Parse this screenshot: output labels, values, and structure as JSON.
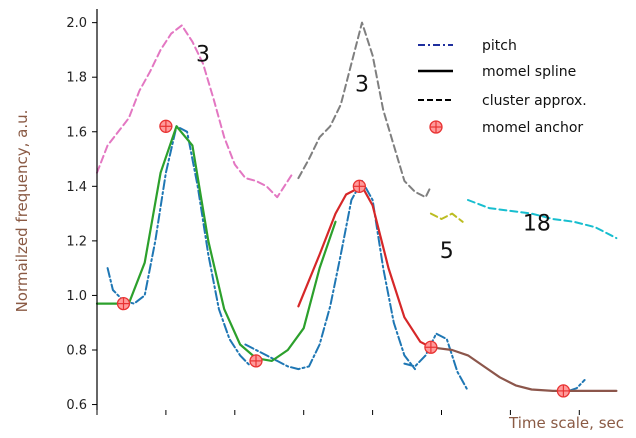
{
  "chart_data": {
    "type": "line",
    "title": "",
    "xlabel": "Time scale, sec",
    "ylabel": "Normailzed frequency, a.u.",
    "xlim": [
      0,
      100
    ],
    "ylim": [
      0.58,
      2.05
    ],
    "yticks": [
      0.6,
      0.8,
      1.0,
      1.2,
      1.4,
      1.6,
      1.8,
      2.0
    ],
    "ytick_labels": [
      "0.6",
      "0.8",
      "1.0",
      "1.2",
      "1.4",
      "1.6",
      "1.8",
      "2.0"
    ],
    "xticks": [
      0,
      13,
      26,
      39,
      52,
      65,
      78,
      91
    ],
    "grid": false,
    "legend_position": "top-right",
    "legend": [
      {
        "label": "pitch",
        "style": "dashdot",
        "color": "#1f2f9e"
      },
      {
        "label": "momel spline",
        "style": "solid",
        "color": "#000000"
      },
      {
        "label": "cluster approx.",
        "style": "dashed",
        "color": "#000000"
      },
      {
        "label": "momel anchor",
        "style": "marker",
        "color": "#ff4d4d"
      }
    ],
    "series": [
      {
        "name": "pitch",
        "style": "dashdot",
        "color": "#1f77b4",
        "segments": [
          {
            "x": [
              2,
              3,
              5,
              7,
              9,
              11,
              13,
              15,
              17,
              19,
              21,
              23,
              25,
              27,
              29
            ],
            "y": [
              1.1,
              1.02,
              0.98,
              0.97,
              1.0,
              1.2,
              1.45,
              1.62,
              1.6,
              1.4,
              1.15,
              0.95,
              0.84,
              0.78,
              0.74
            ]
          },
          {
            "x": [
              28,
              30,
              32,
              34,
              36,
              38,
              40,
              42,
              44,
              46,
              48,
              50,
              52,
              54,
              56,
              58,
              60
            ],
            "y": [
              0.82,
              0.8,
              0.78,
              0.76,
              0.74,
              0.73,
              0.74,
              0.82,
              0.96,
              1.15,
              1.35,
              1.42,
              1.35,
              1.1,
              0.9,
              0.78,
              0.73
            ]
          },
          {
            "x": [
              58,
              60,
              62,
              64,
              66,
              68,
              70
            ],
            "y": [
              0.75,
              0.74,
              0.78,
              0.86,
              0.84,
              0.72,
              0.65
            ]
          },
          {
            "x": [
              89,
              90.5,
              92
            ],
            "y": [
              0.65,
              0.66,
              0.69
            ]
          }
        ]
      },
      {
        "name": "",
        "style": "solid",
        "color": "#2ca02c",
        "segments": [
          {
            "x": [
              0,
              3,
              6,
              9,
              12,
              15,
              18,
              21,
              24,
              27,
              30,
              33,
              36,
              39,
              42,
              45
            ],
            "y": [
              0.97,
              0.97,
              0.97,
              1.12,
              1.45,
              1.62,
              1.55,
              1.2,
              0.95,
              0.82,
              0.77,
              0.76,
              0.8,
              0.88,
              1.1,
              1.27
            ]
          }
        ]
      },
      {
        "name": "",
        "style": "solid",
        "color": "#d62728",
        "segments": [
          {
            "x": [
              38,
              42,
              45,
              47,
              50,
              52,
              55,
              58,
              61,
              63
            ],
            "y": [
              0.96,
              1.15,
              1.3,
              1.37,
              1.4,
              1.33,
              1.1,
              0.92,
              0.83,
              0.81
            ]
          }
        ]
      },
      {
        "name": "",
        "style": "solid",
        "color": "#8c564b",
        "segments": [
          {
            "x": [
              63,
              67,
              70,
              73,
              76,
              79,
              82,
              86,
              90,
              94,
              98
            ],
            "y": [
              0.81,
              0.8,
              0.78,
              0.74,
              0.7,
              0.67,
              0.655,
              0.65,
              0.65,
              0.65,
              0.65
            ]
          }
        ]
      },
      {
        "name": "",
        "style": "dashed",
        "color": "#e377c2",
        "segments": [
          {
            "x": [
              0,
              2,
              4,
              6,
              8,
              10,
              12,
              14,
              16,
              18,
              20,
              22,
              24,
              26,
              28,
              30,
              32,
              34,
              36,
              37
            ],
            "y": [
              1.45,
              1.55,
              1.6,
              1.65,
              1.75,
              1.82,
              1.9,
              1.96,
              1.99,
              1.93,
              1.85,
              1.72,
              1.58,
              1.48,
              1.43,
              1.42,
              1.4,
              1.36,
              1.42,
              1.45
            ]
          }
        ]
      },
      {
        "name": "",
        "style": "dashed",
        "color": "#7f7f7f",
        "segments": [
          {
            "x": [
              38,
              40,
              42,
              44,
              46,
              48,
              50,
              52,
              54,
              56,
              58,
              60,
              62,
              63
            ],
            "y": [
              1.43,
              1.5,
              1.58,
              1.62,
              1.7,
              1.85,
              2.0,
              1.88,
              1.68,
              1.55,
              1.42,
              1.38,
              1.36,
              1.4
            ]
          }
        ]
      },
      {
        "name": "",
        "style": "dashed",
        "color": "#bcbd22",
        "segments": [
          {
            "x": [
              63,
              65,
              67,
              69
            ],
            "y": [
              1.3,
              1.28,
              1.3,
              1.27
            ]
          }
        ]
      },
      {
        "name": "",
        "style": "dashed",
        "color": "#17becf",
        "segments": [
          {
            "x": [
              70,
              74,
              78,
              82,
              86,
              90,
              94,
              98
            ],
            "y": [
              1.35,
              1.32,
              1.31,
              1.3,
              1.28,
              1.27,
              1.25,
              1.21
            ]
          }
        ]
      }
    ],
    "anchors": {
      "x": [
        5,
        13,
        30,
        49.5,
        63,
        88
      ],
      "y": [
        0.97,
        1.62,
        0.76,
        1.4,
        0.81,
        0.65
      ]
    },
    "annotations": [
      {
        "text": "3",
        "x": 20,
        "y": 1.88
      },
      {
        "text": "3",
        "x": 50,
        "y": 1.77
      },
      {
        "text": "5",
        "x": 66,
        "y": 1.16
      },
      {
        "text": "18",
        "x": 83,
        "y": 1.26
      }
    ]
  }
}
